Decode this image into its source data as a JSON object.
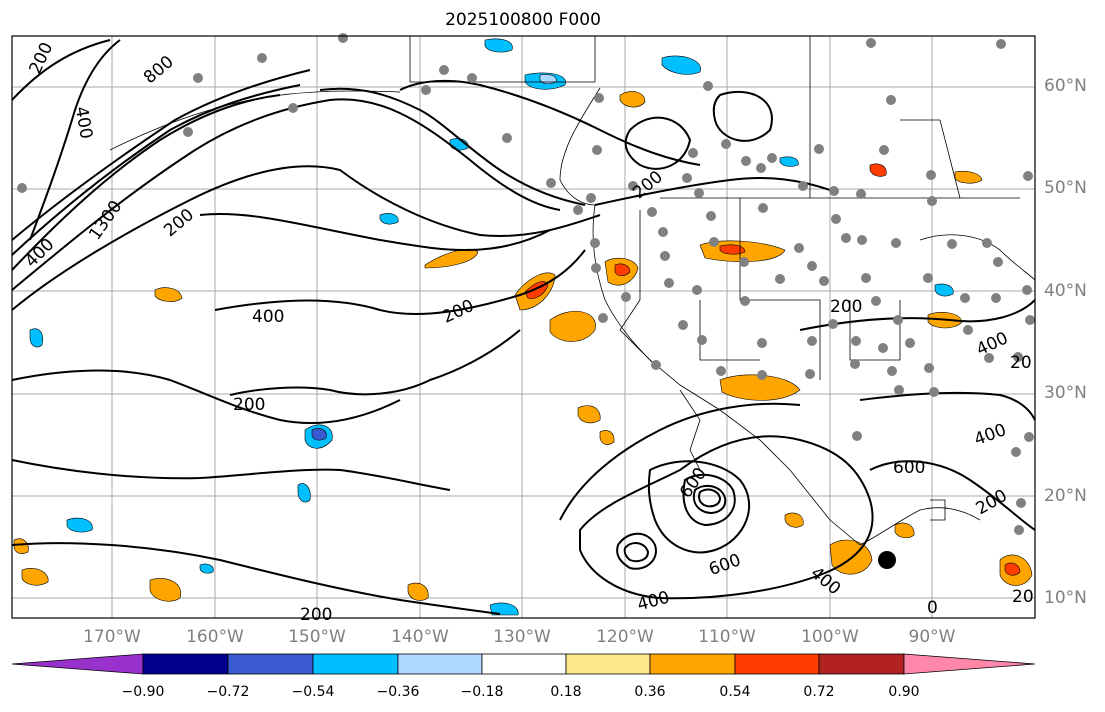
{
  "title": "2025100800 F000",
  "map": {
    "lat_labels": [
      "60°N",
      "50°N",
      "40°N",
      "30°N",
      "20°N",
      "10°N"
    ],
    "lon_labels": [
      "170°W",
      "160°W",
      "150°W",
      "140°W",
      "130°W",
      "120°W",
      "110°W",
      "100°W",
      "90°W"
    ],
    "contour_labels": [
      "200",
      "800",
      "400",
      "1300",
      "200",
      "400",
      "200",
      "400",
      "200",
      "200",
      "200",
      "600",
      "600",
      "400",
      "600",
      "400",
      "200",
      "20",
      "400",
      "400",
      "20",
      "200",
      "0"
    ]
  },
  "colorbar": {
    "ticks": [
      "−0.90",
      "−0.72",
      "−0.54",
      "−0.36",
      "−0.18",
      "0.18",
      "0.36",
      "0.54",
      "0.72",
      "0.90"
    ],
    "colors": [
      "#9932cc",
      "#00008b",
      "#3a5bcf",
      "#00bfff",
      "#add8ff",
      "#ffffff",
      "#fce98a",
      "#ffa500",
      "#ff3d00",
      "#b22222",
      "#ff88aa"
    ]
  }
}
